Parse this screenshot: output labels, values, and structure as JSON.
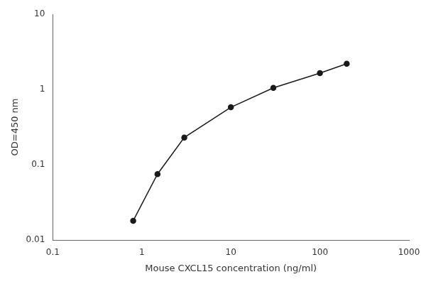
{
  "chart_data": {
    "type": "line",
    "x": [
      0.8,
      1.5,
      3.0,
      10.0,
      30.0,
      100.0,
      200.0
    ],
    "values": [
      0.018,
      0.075,
      0.23,
      0.58,
      1.05,
      1.65,
      2.2
    ],
    "xlabel": "Mouse CXCL15 concentration (ng/ml)",
    "ylabel": "OD=450 nm",
    "xlim": [
      0.1,
      1000
    ],
    "ylim": [
      0.01,
      10
    ],
    "xticks": [
      0.1,
      1,
      10,
      100,
      1000
    ],
    "yticks": [
      0.01,
      0.1,
      1,
      10
    ],
    "log": true,
    "grid": false,
    "color": "#1a1a1a",
    "marker": "circle"
  }
}
